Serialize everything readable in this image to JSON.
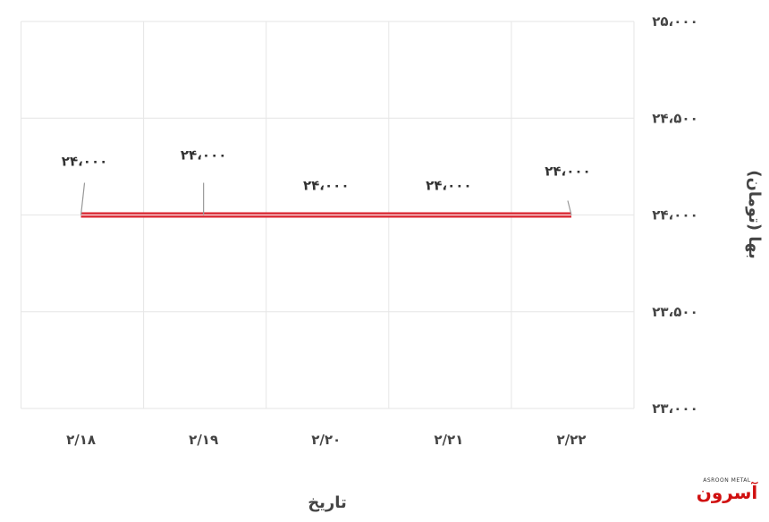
{
  "chart_data": {
    "type": "line",
    "categories": [
      "۲/۱۸",
      "۲/۱۹",
      "۲/۲۰",
      "۲/۲۱",
      "۲/۲۲"
    ],
    "series": [
      {
        "values": [
          24000,
          24000,
          24000,
          24000,
          24000
        ],
        "color": "#d9232e"
      }
    ],
    "data_labels": [
      "۲۴،۰۰۰",
      "۲۴،۰۰۰",
      "۲۴،۰۰۰",
      "۲۴،۰۰۰",
      "۲۴،۰۰۰"
    ],
    "xlabel": "تاریخ",
    "ylabel": "بها (تومان)",
    "ylim": [
      23000,
      25000
    ],
    "yticks": [
      23000,
      23500,
      24000,
      24500,
      25000
    ],
    "ytick_labels": [
      "۲۳،۰۰۰",
      "۲۳،۵۰۰",
      "۲۴،۰۰۰",
      "۲۴،۵۰۰",
      "۲۵،۰۰۰"
    ],
    "y_axis_side": "right",
    "grid": true
  },
  "logo": {
    "name_fa": "آسرون",
    "name_en": "ASROON METAL"
  }
}
